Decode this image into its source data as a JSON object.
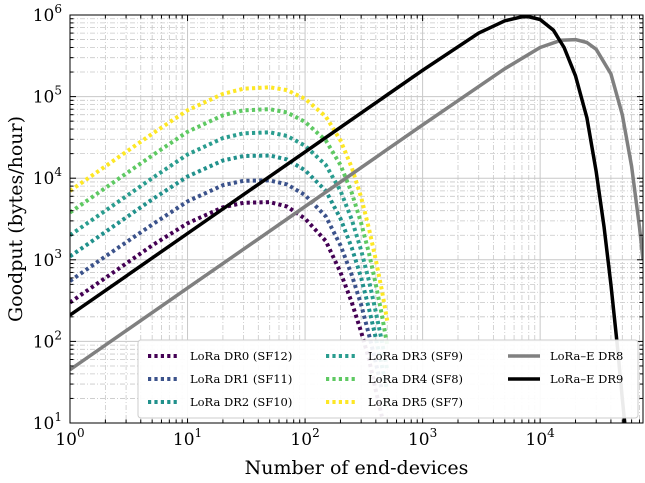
{
  "chart_data": {
    "type": "line",
    "xlabel": "Number of end-devices",
    "ylabel": "Goodput (bytes/hour)",
    "xscale": "log",
    "yscale": "log",
    "xlim": [
      1,
      75000
    ],
    "ylim": [
      10,
      1000000
    ],
    "x_ticks": [
      {
        "base": "10",
        "exp": "0",
        "value": 1
      },
      {
        "base": "10",
        "exp": "1",
        "value": 10
      },
      {
        "base": "10",
        "exp": "2",
        "value": 100
      },
      {
        "base": "10",
        "exp": "3",
        "value": 1000
      },
      {
        "base": "10",
        "exp": "4",
        "value": 10000
      }
    ],
    "y_ticks": [
      {
        "base": "10",
        "exp": "1",
        "value": 10
      },
      {
        "base": "10",
        "exp": "2",
        "value": 100
      },
      {
        "base": "10",
        "exp": "3",
        "value": 1000
      },
      {
        "base": "10",
        "exp": "4",
        "value": 10000
      },
      {
        "base": "10",
        "exp": "5",
        "value": 100000
      },
      {
        "base": "10",
        "exp": "6",
        "value": 1000000
      }
    ],
    "grid": true,
    "legend": {
      "position": "bottom-right",
      "columns": 3
    },
    "series": [
      {
        "name": "LoRa DR0 (SF12)",
        "color": "#440154",
        "style": "dotted",
        "x": [
          1,
          2,
          5,
          10,
          20,
          30,
          50,
          70,
          100,
          150,
          200,
          250,
          300,
          350,
          400,
          450
        ],
        "y": [
          300,
          600,
          1500,
          2800,
          4400,
          5000,
          5100,
          4500,
          3200,
          1700,
          700,
          300,
          130,
          60,
          25,
          12
        ]
      },
      {
        "name": "LoRa DR1 (SF11)",
        "color": "#3b528b",
        "style": "dotted",
        "x": [
          1,
          2,
          5,
          10,
          20,
          30,
          50,
          70,
          100,
          150,
          200,
          250,
          300,
          350,
          400,
          450
        ],
        "y": [
          550,
          1100,
          2700,
          5200,
          8200,
          9300,
          9400,
          8400,
          6200,
          3400,
          1500,
          650,
          280,
          120,
          55,
          25
        ]
      },
      {
        "name": "LoRa DR2 (SF10)",
        "color": "#21918c",
        "style": "dotted",
        "x": [
          1,
          2,
          5,
          10,
          20,
          30,
          50,
          70,
          100,
          150,
          200,
          250,
          300,
          350,
          400,
          450,
          500
        ],
        "y": [
          1100,
          2200,
          5500,
          10500,
          16500,
          18700,
          19000,
          17000,
          12500,
          7000,
          3200,
          1400,
          600,
          250,
          110,
          50,
          25
        ]
      },
      {
        "name": "LoRa DR3 (SF9)",
        "color": "#2a9d8f",
        "style": "dotted",
        "x": [
          1,
          2,
          5,
          10,
          20,
          30,
          50,
          70,
          100,
          150,
          200,
          250,
          300,
          350,
          400,
          450,
          500
        ],
        "y": [
          2000,
          4000,
          10000,
          19500,
          31000,
          35500,
          36500,
          33000,
          25000,
          14500,
          7000,
          3100,
          1300,
          550,
          230,
          100,
          45
        ]
      },
      {
        "name": "LoRa DR4 (SF8)",
        "color": "#5ec962",
        "style": "dotted",
        "x": [
          1,
          2,
          5,
          10,
          20,
          30,
          50,
          70,
          100,
          150,
          200,
          250,
          300,
          350,
          400,
          450,
          500
        ],
        "y": [
          3800,
          7600,
          19000,
          37000,
          59000,
          68000,
          70000,
          64000,
          49000,
          29000,
          14500,
          6600,
          2800,
          1200,
          500,
          210,
          90
        ]
      },
      {
        "name": "LoRa DR5 (SF7)",
        "color": "#fde725",
        "style": "dotted",
        "x": [
          1,
          2,
          5,
          10,
          20,
          30,
          50,
          70,
          100,
          150,
          200,
          250,
          300,
          350,
          400,
          450,
          500
        ],
        "y": [
          7000,
          14000,
          35000,
          68000,
          108000,
          125000,
          130000,
          120000,
          94000,
          57000,
          29000,
          13500,
          5800,
          2400,
          1000,
          420,
          180
        ]
      },
      {
        "name": "LoRa–E DR8",
        "color": "#808080",
        "style": "solid",
        "x": [
          1,
          10,
          100,
          1000,
          5000,
          10000,
          15000,
          20000,
          25000,
          30000,
          40000,
          50000,
          60000,
          70000,
          75000
        ],
        "y": [
          45,
          450,
          4500,
          45000,
          220000,
          400000,
          490000,
          500000,
          460000,
          380000,
          190000,
          60000,
          14000,
          2500,
          1000
        ]
      },
      {
        "name": "LoRa–E DR9",
        "color": "#000000",
        "style": "solid",
        "x": [
          1,
          10,
          100,
          1000,
          3000,
          5000,
          7000,
          8000,
          10000,
          13000,
          16000,
          20000,
          25000,
          30000,
          35000,
          40000,
          45000,
          50000,
          55000
        ],
        "y": [
          210,
          2100,
          21000,
          210000,
          600000,
          850000,
          950000,
          950000,
          880000,
          650000,
          400000,
          180000,
          55000,
          12000,
          2500,
          500,
          100,
          20,
          5
        ]
      }
    ]
  }
}
